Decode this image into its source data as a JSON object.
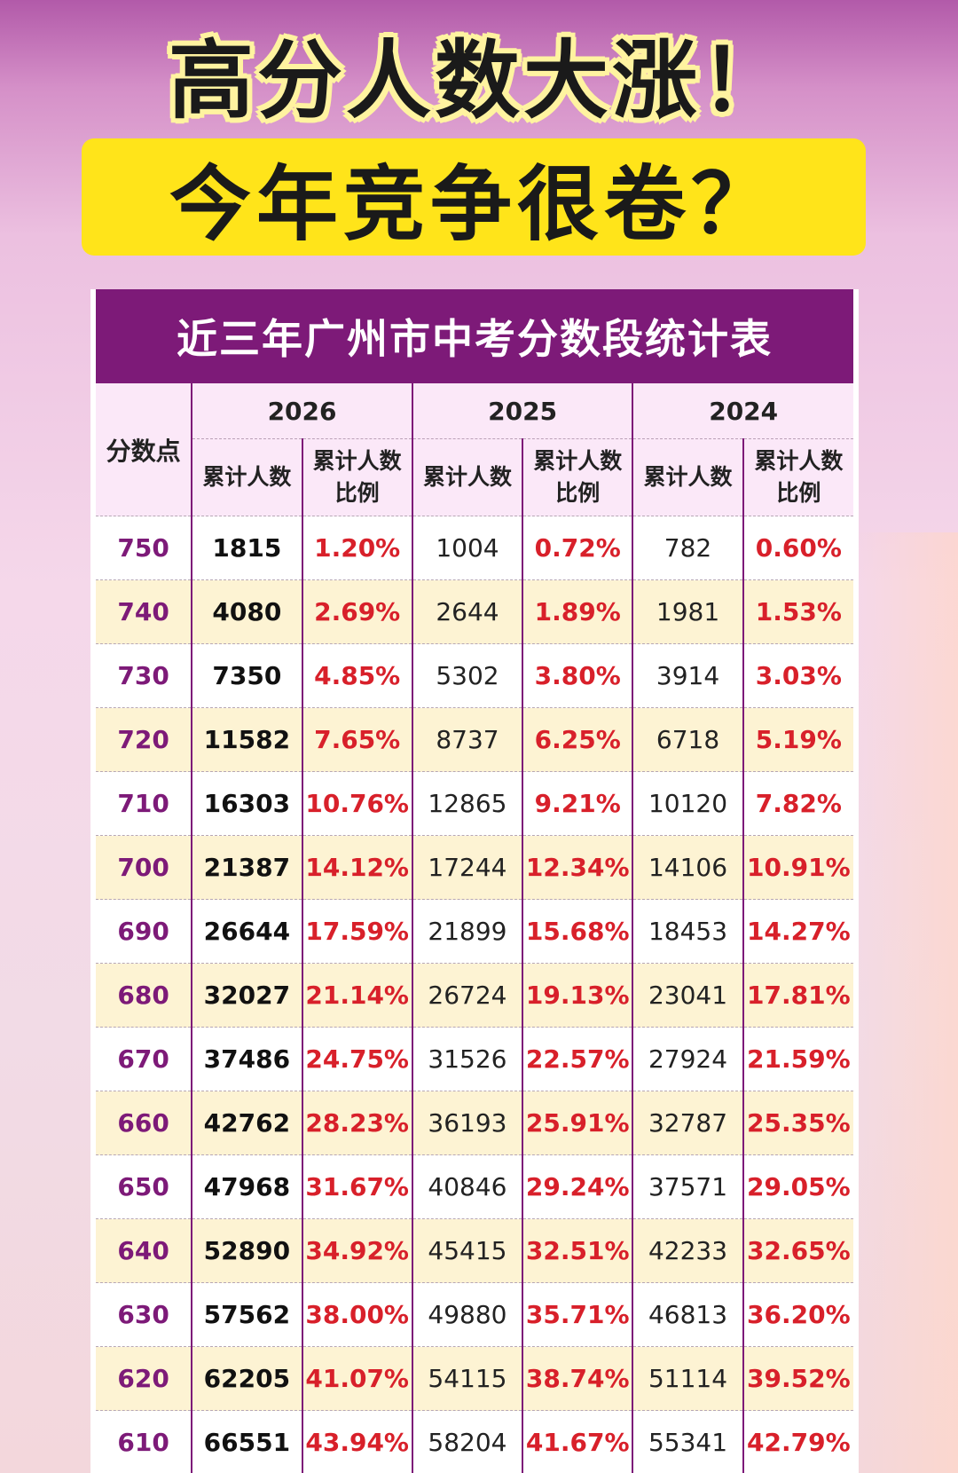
{
  "headline": {
    "line1": "高分人数大涨！",
    "line2": "今年竞争很卷？"
  },
  "colors": {
    "title_bar": "#7d1a78",
    "highlight": "#ffe41a",
    "percent_text": "#d8202a",
    "score_text": "#7d1a78"
  },
  "table": {
    "title": "近三年广州市中考分数段统计表",
    "score_header": "分数点",
    "years": [
      "2026",
      "2025",
      "2024"
    ],
    "count_header": "累计人数",
    "ratio_header_1": "累计人数",
    "ratio_header_2": "比例",
    "rows": [
      {
        "score": "750",
        "c2026": "1815",
        "p2026": "1.20%",
        "c2025": "1004",
        "p2025": "0.72%",
        "c2024": "782",
        "p2024": "0.60%"
      },
      {
        "score": "740",
        "c2026": "4080",
        "p2026": "2.69%",
        "c2025": "2644",
        "p2025": "1.89%",
        "c2024": "1981",
        "p2024": "1.53%"
      },
      {
        "score": "730",
        "c2026": "7350",
        "p2026": "4.85%",
        "c2025": "5302",
        "p2025": "3.80%",
        "c2024": "3914",
        "p2024": "3.03%"
      },
      {
        "score": "720",
        "c2026": "11582",
        "p2026": "7.65%",
        "c2025": "8737",
        "p2025": "6.25%",
        "c2024": "6718",
        "p2024": "5.19%"
      },
      {
        "score": "710",
        "c2026": "16303",
        "p2026": "10.76%",
        "c2025": "12865",
        "p2025": "9.21%",
        "c2024": "10120",
        "p2024": "7.82%"
      },
      {
        "score": "700",
        "c2026": "21387",
        "p2026": "14.12%",
        "c2025": "17244",
        "p2025": "12.34%",
        "c2024": "14106",
        "p2024": "10.91%"
      },
      {
        "score": "690",
        "c2026": "26644",
        "p2026": "17.59%",
        "c2025": "21899",
        "p2025": "15.68%",
        "c2024": "18453",
        "p2024": "14.27%"
      },
      {
        "score": "680",
        "c2026": "32027",
        "p2026": "21.14%",
        "c2025": "26724",
        "p2025": "19.13%",
        "c2024": "23041",
        "p2024": "17.81%"
      },
      {
        "score": "670",
        "c2026": "37486",
        "p2026": "24.75%",
        "c2025": "31526",
        "p2025": "22.57%",
        "c2024": "27924",
        "p2024": "21.59%"
      },
      {
        "score": "660",
        "c2026": "42762",
        "p2026": "28.23%",
        "c2025": "36193",
        "p2025": "25.91%",
        "c2024": "32787",
        "p2024": "25.35%"
      },
      {
        "score": "650",
        "c2026": "47968",
        "p2026": "31.67%",
        "c2025": "40846",
        "p2025": "29.24%",
        "c2024": "37571",
        "p2024": "29.05%"
      },
      {
        "score": "640",
        "c2026": "52890",
        "p2026": "34.92%",
        "c2025": "45415",
        "p2025": "32.51%",
        "c2024": "42233",
        "p2024": "32.65%"
      },
      {
        "score": "630",
        "c2026": "57562",
        "p2026": "38.00%",
        "c2025": "49880",
        "p2025": "35.71%",
        "c2024": "46813",
        "p2024": "36.20%"
      },
      {
        "score": "620",
        "c2026": "62205",
        "p2026": "41.07%",
        "c2025": "54115",
        "p2025": "38.74%",
        "c2024": "51114",
        "p2024": "39.52%"
      },
      {
        "score": "610",
        "c2026": "66551",
        "p2026": "43.94%",
        "c2025": "58204",
        "p2025": "41.67%",
        "c2024": "55341",
        "p2024": "42.79%"
      }
    ]
  }
}
